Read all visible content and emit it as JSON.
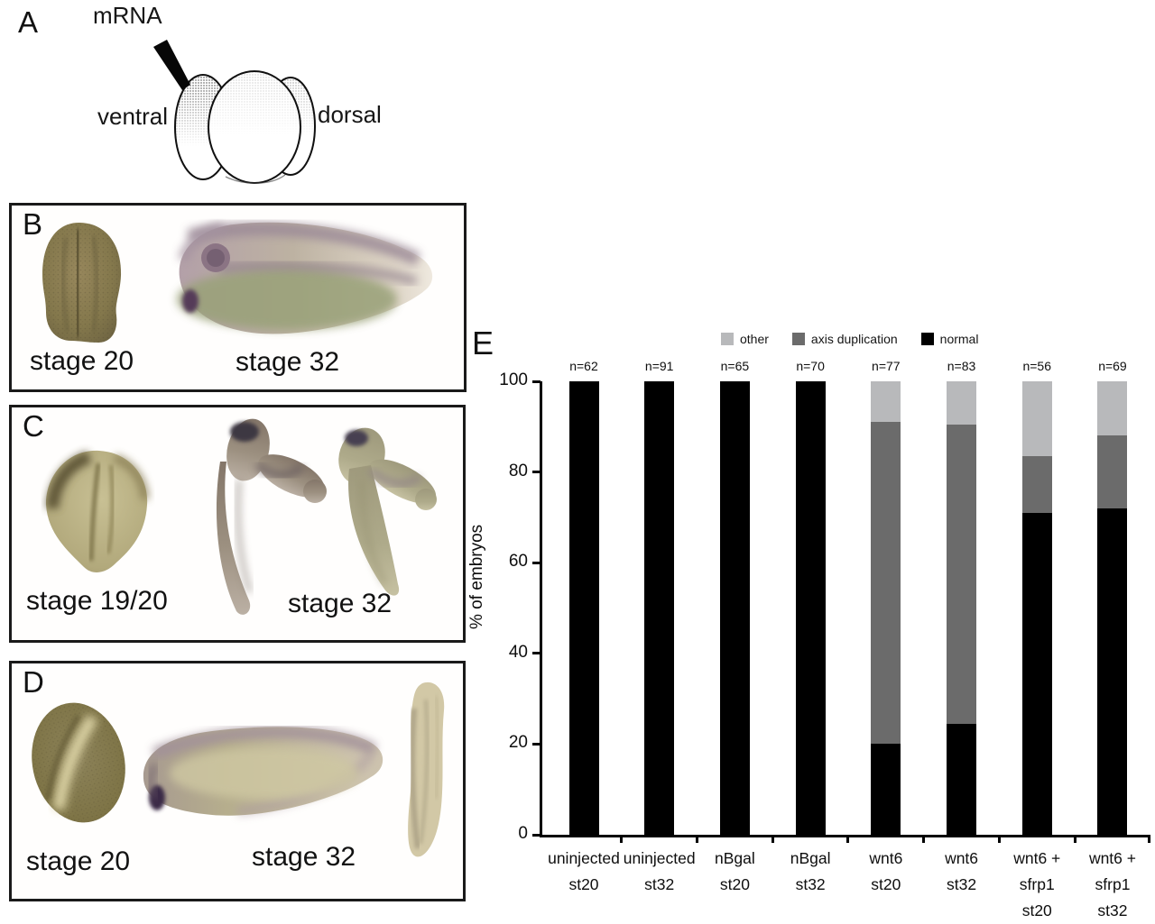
{
  "panel_a": {
    "letter": "A",
    "mrna_label": "mRNA",
    "ventral_label": "ventral",
    "dorsal_label": "dorsal"
  },
  "panel_b": {
    "letter": "B",
    "caption_left": "stage 20",
    "caption_right": "stage 32"
  },
  "panel_c": {
    "letter": "C",
    "caption_left": "stage 19/20",
    "caption_right": "stage 32"
  },
  "panel_d": {
    "letter": "D",
    "caption_left": "stage 20",
    "caption_right": "stage 32"
  },
  "panel_e": {
    "letter": "E"
  },
  "chart_data": {
    "type": "bar",
    "stacked": true,
    "title": "",
    "xlabel": "",
    "ylabel": "% of embryos",
    "ylim": [
      0,
      100
    ],
    "yticks": [
      0,
      20,
      40,
      60,
      80,
      100
    ],
    "grid": false,
    "legend_position": "top",
    "categories": [
      "uninjected\nst20",
      "uninjected\nst32",
      "nBgal\nst20",
      "nBgal\nst32",
      "wnt6\nst20",
      "wnt6\nst32",
      "wnt6 +\nsfrp1\nst20",
      "wnt6 +\nsfrp1\nst32"
    ],
    "n_labels": [
      "n=62",
      "n=91",
      "n=65",
      "n=70",
      "n=77",
      "n=83",
      "n=56",
      "n=69"
    ],
    "series": [
      {
        "name": "normal",
        "color": "#000000",
        "values": [
          100,
          100,
          100,
          100,
          20,
          24.5,
          71,
          72
        ]
      },
      {
        "name": "axis duplication",
        "color": "#6b6b6b",
        "values": [
          0,
          0,
          0,
          0,
          71,
          66,
          12.5,
          16
        ]
      },
      {
        "name": "other",
        "color": "#b8b9bb",
        "values": [
          0,
          0,
          0,
          0,
          9,
          9.5,
          16.5,
          12
        ]
      }
    ],
    "legend": [
      {
        "label": "other",
        "color": "#b8b9bb"
      },
      {
        "label": "axis duplication",
        "color": "#6b6b6b"
      },
      {
        "label": "normal",
        "color": "#000000"
      }
    ]
  }
}
